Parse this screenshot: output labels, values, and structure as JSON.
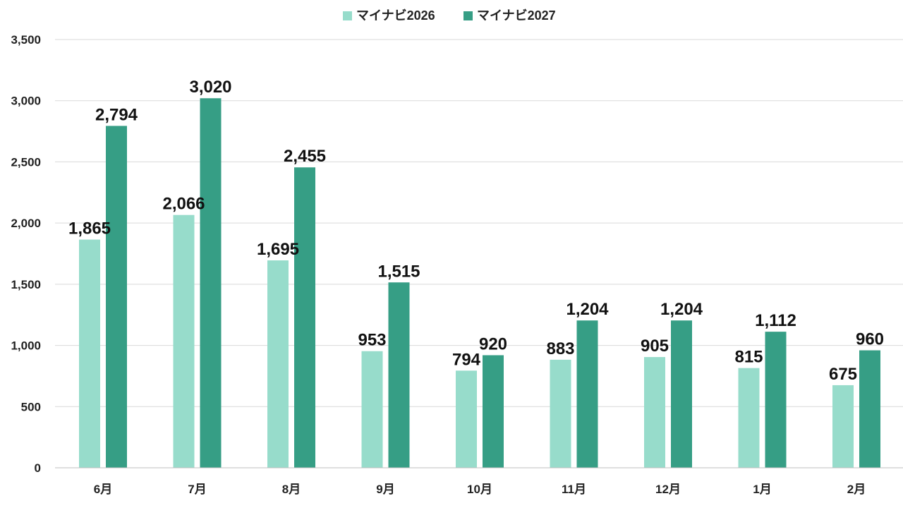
{
  "chart_data": {
    "type": "bar",
    "categories": [
      "6月",
      "7月",
      "8月",
      "9月",
      "10月",
      "11月",
      "12月",
      "1月",
      "2月"
    ],
    "series": [
      {
        "name": "マイナビ2026",
        "color": "#97dccb",
        "values": [
          1865,
          2066,
          1695,
          953,
          794,
          883,
          905,
          815,
          675
        ],
        "labels": [
          "1,865",
          "2,066",
          "1,695",
          "953",
          "794",
          "883",
          "905",
          "815",
          "675"
        ]
      },
      {
        "name": "マイナビ2027",
        "color": "#369e85",
        "values": [
          2794,
          3020,
          2455,
          1515,
          920,
          1204,
          1204,
          1112,
          960
        ],
        "labels": [
          "2,794",
          "3,020",
          "2,455",
          "1,515",
          "920",
          "1,204",
          "1,204",
          "1,112",
          "960"
        ]
      }
    ],
    "title": "",
    "xlabel": "",
    "ylabel": "",
    "ylim": [
      0,
      3500
    ],
    "yticks": [
      0,
      500,
      1000,
      1500,
      2000,
      2500,
      3000,
      3500
    ],
    "ytick_labels": [
      "0",
      "500",
      "1,000",
      "1,500",
      "2,000",
      "2,500",
      "3,000",
      "3,500"
    ],
    "grid": true,
    "legend_position": "top-center"
  }
}
